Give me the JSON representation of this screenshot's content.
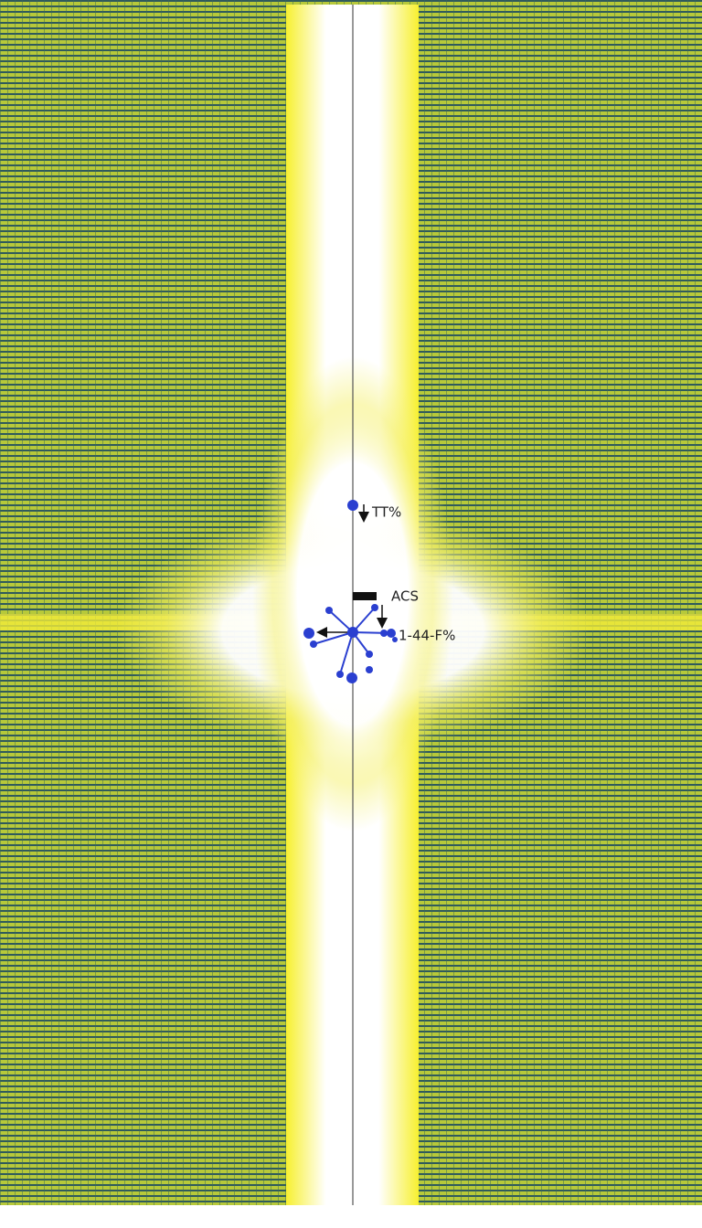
{
  "annotations": {
    "top": "TT%",
    "upper": "ACS",
    "right": "1-44-F%"
  }
}
